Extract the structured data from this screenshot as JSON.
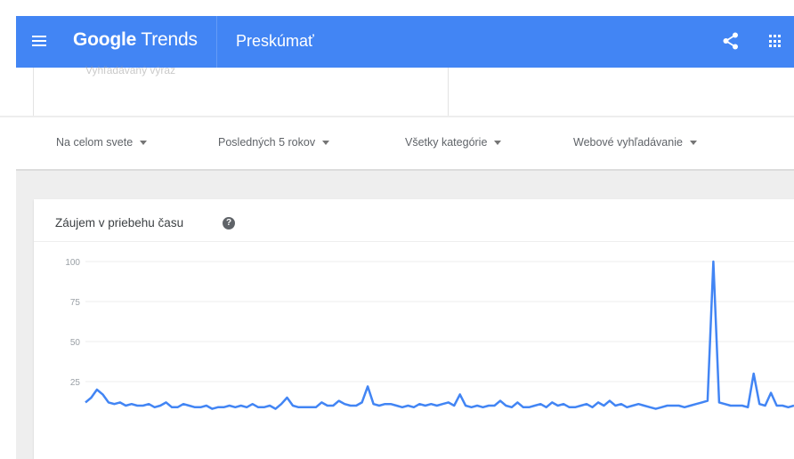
{
  "header": {
    "brand_google": "Google",
    "brand_trends": "Trends",
    "page_name": "Preskúmať",
    "color": "#4285f4"
  },
  "term_card": {
    "subtitle": "Vyhľadávaný výraz"
  },
  "filters": [
    {
      "label": "Na celom svete"
    },
    {
      "label": "Posledných 5 rokov"
    },
    {
      "label": "Všetky kategórie"
    },
    {
      "label": "Webové vyhľadávanie"
    }
  ],
  "chart": {
    "title": "Záujem v priebehu času",
    "help_icon": "?"
  },
  "chart_data": {
    "type": "line",
    "ylim": [
      0,
      100
    ],
    "y_ticks": [
      25,
      50,
      75,
      100
    ],
    "grid": true,
    "line_color": "#4285f4",
    "series": [
      {
        "values": [
          12,
          15,
          20,
          17,
          12,
          11,
          12,
          10,
          11,
          10,
          10,
          11,
          9,
          10,
          12,
          9,
          9,
          11,
          10,
          9,
          9,
          10,
          8,
          9,
          9,
          10,
          9,
          10,
          9,
          11,
          9,
          9,
          10,
          8,
          11,
          15,
          10,
          9,
          9,
          9,
          9,
          12,
          10,
          10,
          13,
          11,
          10,
          10,
          12,
          22,
          11,
          10,
          11,
          11,
          10,
          9,
          10,
          9,
          11,
          10,
          11,
          10,
          11,
          12,
          10,
          17,
          10,
          9,
          10,
          9,
          10,
          10,
          13,
          10,
          9,
          12,
          9,
          9,
          10,
          11,
          9,
          12,
          10,
          11,
          9,
          9,
          10,
          11,
          9,
          12,
          10,
          13,
          10,
          11,
          9,
          10,
          11,
          10,
          9,
          8,
          9,
          10,
          10,
          10,
          9,
          10,
          11,
          12,
          13,
          100,
          12,
          11,
          10,
          10,
          10,
          9,
          30,
          11,
          10,
          18,
          10,
          10,
          9,
          10
        ]
      }
    ]
  }
}
